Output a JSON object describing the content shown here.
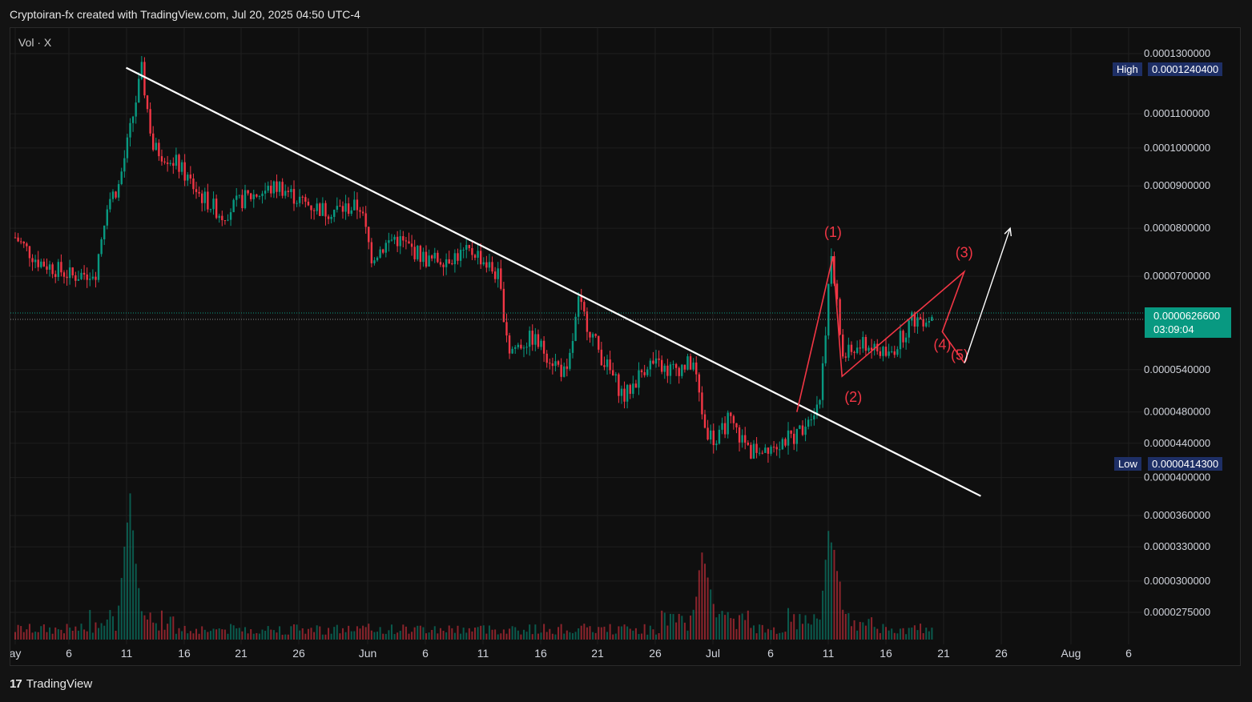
{
  "header": {
    "title": "Cryptoiran-fx created with TradingView.com, Jul 20, 2025 04:50 UTC-4"
  },
  "indicator": {
    "label": "Vol · X"
  },
  "footer": {
    "brand": "TradingView",
    "logo_text": "17"
  },
  "price_axis": {
    "labels": [
      "0.0001300000",
      "0.0001100000",
      "0.0001000000",
      "0.0000900000",
      "0.0000800000",
      "0.0000700000",
      "0.0000540000",
      "0.0000480000",
      "0.0000440000",
      "0.0000400000",
      "0.0000360000",
      "0.0000330000",
      "0.0000300000",
      "0.0000275000"
    ]
  },
  "markers": {
    "high": {
      "label": "High",
      "value": "0.0001240400",
      "color": "#1e2f66"
    },
    "low": {
      "label": "Low",
      "value": "0.0000414300",
      "color": "#1e2f66"
    },
    "current": {
      "value": "0.0000626600",
      "countdown": "03:09:04",
      "color": "#089981"
    }
  },
  "time_axis": {
    "labels": [
      "ay",
      "6",
      "11",
      "16",
      "21",
      "26",
      "Jun",
      "6",
      "11",
      "16",
      "21",
      "26",
      "Jul",
      "6",
      "11",
      "16",
      "21",
      "26",
      "Aug",
      "6"
    ]
  },
  "wave_labels": [
    "(1)",
    "(2)",
    "(3)",
    "(4)",
    "(5)"
  ],
  "colors": {
    "up": "#089981",
    "down": "#f23645",
    "wave": "#f23645",
    "trendline": "#ffffff",
    "grid": "#1f1f1f"
  },
  "chart_data": {
    "type": "candlestick",
    "title": "",
    "x_range": [
      "May 1, 2025",
      "Aug 6, 2025"
    ],
    "y_scale": "log",
    "y_range": [
      2.75e-05,
      0.00013
    ],
    "grid": true,
    "price_path": [
      {
        "date": "May 1",
        "close": 7.8e-05
      },
      {
        "date": "May 3",
        "close": 7.3e-05
      },
      {
        "date": "May 6",
        "close": 7e-05
      },
      {
        "date": "May 8",
        "close": 7.1e-05
      },
      {
        "date": "May 9",
        "close": 8.6e-05
      },
      {
        "date": "May 10",
        "close": 9e-05
      },
      {
        "date": "May 11",
        "close": 0.000105
      },
      {
        "date": "May 12",
        "close": 0.000124
      },
      {
        "date": "May 13",
        "close": 0.0001
      },
      {
        "date": "May 15",
        "close": 9.6e-05
      },
      {
        "date": "May 17",
        "close": 8.8e-05
      },
      {
        "date": "May 19",
        "close": 8.3e-05
      },
      {
        "date": "May 21",
        "close": 8.7e-05
      },
      {
        "date": "May 24",
        "close": 9e-05
      },
      {
        "date": "May 26",
        "close": 8.6e-05
      },
      {
        "date": "May 28",
        "close": 8.4e-05
      },
      {
        "date": "May 31",
        "close": 8.5e-05
      },
      {
        "date": "Jun 1",
        "close": 7.4e-05
      },
      {
        "date": "Jun 3",
        "close": 7.8e-05
      },
      {
        "date": "Jun 6",
        "close": 7.3e-05
      },
      {
        "date": "Jun 10",
        "close": 7.5e-05
      },
      {
        "date": "Jun 12",
        "close": 7e-05
      },
      {
        "date": "Jun 13",
        "close": 5.7e-05
      },
      {
        "date": "Jun 15",
        "close": 5.9e-05
      },
      {
        "date": "Jun 18",
        "close": 5.3e-05
      },
      {
        "date": "Jun 19",
        "close": 6.5e-05
      },
      {
        "date": "Jun 21",
        "close": 5.6e-05
      },
      {
        "date": "Jun 23",
        "close": 5e-05
      },
      {
        "date": "Jun 25",
        "close": 5.5e-05
      },
      {
        "date": "Jun 27",
        "close": 5.4e-05
      },
      {
        "date": "Jun 29",
        "close": 5.5e-05
      },
      {
        "date": "Jun 30",
        "close": 4.6e-05
      },
      {
        "date": "Jul 1",
        "close": 4.4e-05
      },
      {
        "date": "Jul 2",
        "close": 4.7e-05
      },
      {
        "date": "Jul 4",
        "close": 4.3e-05
      },
      {
        "date": "Jul 6",
        "close": 4.4e-05
      },
      {
        "date": "Jul 8",
        "close": 4.5e-05
      },
      {
        "date": "Jul 10",
        "close": 5e-05
      },
      {
        "date": "Jul 11",
        "close": 7.4e-05
      },
      {
        "date": "Jul 12",
        "close": 5.6e-05
      },
      {
        "date": "Jul 14",
        "close": 5.8e-05
      },
      {
        "date": "Jul 16",
        "close": 5.6e-05
      },
      {
        "date": "Jul 18",
        "close": 6.2e-05
      },
      {
        "date": "Jul 20",
        "close": 6.27e-05
      }
    ],
    "high_marker": 0.00012404,
    "low_marker": 4.143e-05,
    "last_price": 6.266e-05,
    "trendline": [
      {
        "date": "May 11",
        "price": 0.000125
      },
      {
        "date": "Jul 24",
        "price": 3.8e-05
      }
    ],
    "elliott_wave": [
      {
        "label": "start",
        "date": "Jul 8",
        "price": 4.8e-05
      },
      {
        "label": "(1)",
        "date": "Jul 11",
        "price": 7.4e-05
      },
      {
        "label": "(2)",
        "date": "Jul 12",
        "price": 5.3e-05
      },
      {
        "label": "(3)",
        "date": "Jul 22",
        "price": 6.6e-05
      },
      {
        "label": "(4)",
        "date": "Jul 21",
        "price": 6e-05
      },
      {
        "label": "(5)",
        "date": "Jul 23",
        "price": 5.5e-05
      }
    ],
    "projection_arrow": [
      {
        "date": "Jul 23",
        "price": 5.5e-05
      },
      {
        "date": "Jul 26",
        "price": 8e-05
      }
    ],
    "volume_spikes": [
      {
        "date": "May 11",
        "relative": 1.0
      },
      {
        "date": "Jun 30",
        "relative": 0.72
      },
      {
        "date": "Jul 11",
        "relative": 1.02
      }
    ]
  }
}
